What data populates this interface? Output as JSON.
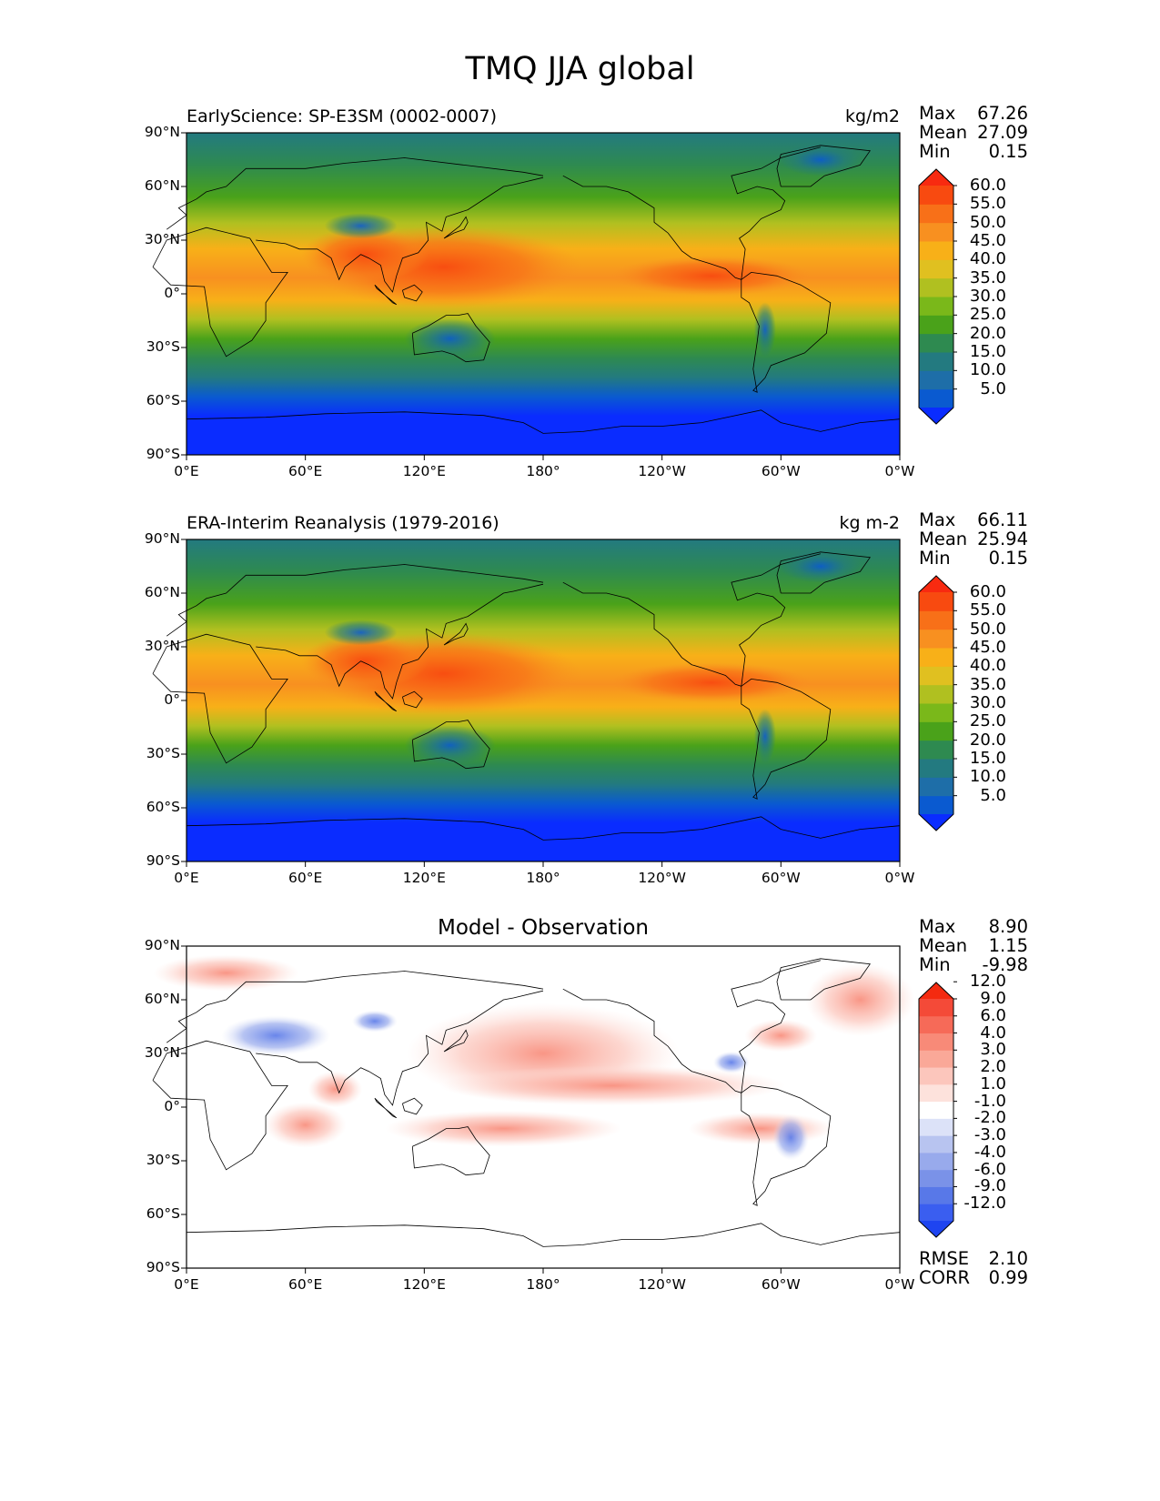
{
  "figure": {
    "title": "TMQ JJA global"
  },
  "chart_data": [
    {
      "type": "heatmap",
      "id": "model",
      "title_left": "EarlyScience: SP-E3SM (0002-0007)",
      "title_right": "kg/m2",
      "stats": [
        {
          "label": "Max",
          "value": "67.26"
        },
        {
          "label": "Mean",
          "value": "27.09"
        },
        {
          "label": "Min",
          "value": "0.15"
        }
      ],
      "x_ticks": [
        "0°E",
        "60°E",
        "120°E",
        "180°",
        "120°W",
        "60°W",
        "0°W"
      ],
      "y_ticks": [
        "90°N",
        "60°N",
        "30°N",
        "0°",
        "30°S",
        "60°S",
        "90°S"
      ],
      "xlim": [
        0,
        360
      ],
      "ylim": [
        -90,
        90
      ],
      "colorbar": {
        "extend": "both",
        "levels": [
          0,
          5,
          10,
          15,
          20,
          25,
          30,
          35,
          40,
          45,
          50,
          55,
          60,
          65
        ],
        "tick_labels": [
          "5.0",
          "10.0",
          "15.0",
          "20.0",
          "25.0",
          "30.0",
          "35.0",
          "40.0",
          "45.0",
          "50.0",
          "55.0",
          "60.0"
        ],
        "colors": [
          "#0a2cff",
          "#0a5ad0",
          "#1e6ea8",
          "#237a80",
          "#2e8a50",
          "#4aa21a",
          "#7ab81a",
          "#b0c020",
          "#e0c020",
          "#f8b018",
          "#f89020",
          "#f87018",
          "#f84a10",
          "#f82a10"
        ]
      }
    },
    {
      "type": "heatmap",
      "id": "obs",
      "title_left": "ERA-Interim Reanalysis (1979-2016)",
      "title_right": "kg m-2",
      "stats": [
        {
          "label": "Max",
          "value": "66.11"
        },
        {
          "label": "Mean",
          "value": "25.94"
        },
        {
          "label": "Min",
          "value": "0.15"
        }
      ],
      "x_ticks": [
        "0°E",
        "60°E",
        "120°E",
        "180°",
        "120°W",
        "60°W",
        "0°W"
      ],
      "y_ticks": [
        "90°N",
        "60°N",
        "30°N",
        "0°",
        "30°S",
        "60°S",
        "90°S"
      ],
      "xlim": [
        0,
        360
      ],
      "ylim": [
        -90,
        90
      ],
      "colorbar": {
        "extend": "both",
        "levels": [
          0,
          5,
          10,
          15,
          20,
          25,
          30,
          35,
          40,
          45,
          50,
          55,
          60,
          65
        ],
        "tick_labels": [
          "5.0",
          "10.0",
          "15.0",
          "20.0",
          "25.0",
          "30.0",
          "35.0",
          "40.0",
          "45.0",
          "50.0",
          "55.0",
          "60.0"
        ],
        "colors": [
          "#0a2cff",
          "#0a5ad0",
          "#1e6ea8",
          "#237a80",
          "#2e8a50",
          "#4aa21a",
          "#7ab81a",
          "#b0c020",
          "#e0c020",
          "#f8b018",
          "#f89020",
          "#f87018",
          "#f84a10",
          "#f82a10"
        ]
      }
    },
    {
      "type": "heatmap",
      "id": "diff",
      "title_center": "Model - Observation",
      "stats": [
        {
          "label": "Max",
          "value": "8.90"
        },
        {
          "label": "Mean",
          "value": "1.15"
        },
        {
          "label": "Min",
          "value": "-9.98"
        }
      ],
      "extra_stats": [
        {
          "label": "RMSE",
          "value": "2.10"
        },
        {
          "label": "CORR",
          "value": "0.99"
        }
      ],
      "x_ticks": [
        "0°E",
        "60°E",
        "120°E",
        "180°",
        "120°W",
        "60°W",
        "0°W"
      ],
      "y_ticks": [
        "90°N",
        "60°N",
        "30°N",
        "0°",
        "30°S",
        "60°S",
        "90°S"
      ],
      "xlim": [
        0,
        360
      ],
      "ylim": [
        -90,
        90
      ],
      "colorbar": {
        "extend": "both",
        "tick_labels": [
          "-12.0",
          "-9.0",
          "-6.0",
          "-4.0",
          "-3.0",
          "-2.0",
          "-1.0",
          "1.0",
          "2.0",
          "3.0",
          "4.0",
          "6.0",
          "9.0",
          "12.0"
        ],
        "colors": [
          "#1e44f0",
          "#3a5ef0",
          "#5878e8",
          "#7a92e8",
          "#98aaec",
          "#b8c4f0",
          "#dce2f8",
          "#ffffff",
          "#fde2dc",
          "#fcc6bc",
          "#faa898",
          "#f88a78",
          "#f66a58",
          "#f44a38",
          "#f42a10"
        ]
      }
    }
  ]
}
